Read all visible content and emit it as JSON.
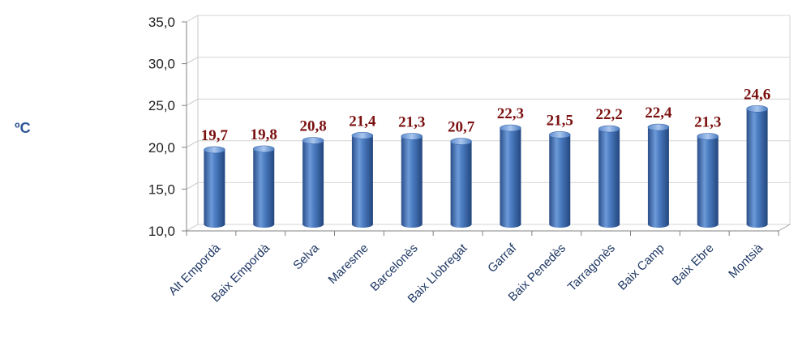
{
  "chart_data": {
    "type": "bar",
    "ylabel": "ºC",
    "ylim": [
      10,
      35
    ],
    "yticks": [
      "10,0",
      "15,0",
      "20,0",
      "25,0",
      "30,0",
      "35,0"
    ],
    "categories": [
      "Alt Empordà",
      "Baix Empordà",
      "Selva",
      "Maresme",
      "Barcelonès",
      "Baix Llobregat",
      "Garraf",
      "Baix Penedès",
      "Tarragonès",
      "Baix Camp",
      "Baix Ebre",
      "Montsià"
    ],
    "values": [
      19.7,
      19.8,
      20.8,
      21.4,
      21.3,
      20.7,
      22.3,
      21.5,
      22.2,
      22.4,
      21.3,
      24.6
    ],
    "data_labels": [
      "19,7",
      "19,8",
      "20,8",
      "21,4",
      "21,3",
      "20,7",
      "22,3",
      "21,5",
      "22,2",
      "22,4",
      "21,3",
      "24,6"
    ],
    "grid": true,
    "colors": {
      "bar": "#4a7bc0",
      "bar_dark": "#2b4f8a",
      "bar_light": "#9bbbe8",
      "data_label": "#7b1010",
      "ylabel": "#2f5597",
      "category": "#1f3864"
    }
  }
}
